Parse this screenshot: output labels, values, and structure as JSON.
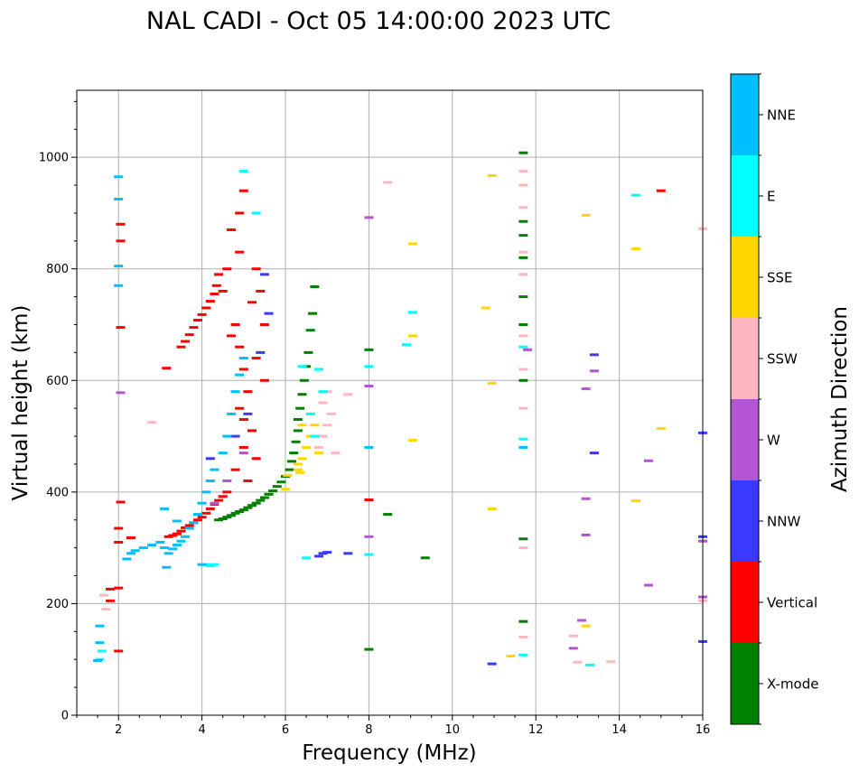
{
  "chart_data": {
    "type": "scatter",
    "title": "NAL CADI - Oct 05 14:00:00 2023 UTC",
    "xlabel": "Frequency (MHz)",
    "ylabel": "Virtual height (km)",
    "xlim": [
      1,
      16
    ],
    "ylim": [
      0,
      1120
    ],
    "xticks": [
      2,
      4,
      6,
      8,
      10,
      12,
      14,
      16
    ],
    "yticks": [
      0,
      200,
      400,
      600,
      800,
      1000
    ],
    "grid": true,
    "colorbar": {
      "label": "Azimuth Direction",
      "placement": "right",
      "categories": [
        {
          "name": "X-mode",
          "color": "#008000"
        },
        {
          "name": "Vertical",
          "color": "#ff0000"
        },
        {
          "name": "NNW",
          "color": "#3a3aff"
        },
        {
          "name": "W",
          "color": "#b455d4"
        },
        {
          "name": "SSW",
          "color": "#ffb6c1"
        },
        {
          "name": "SSE",
          "color": "#ffd700"
        },
        {
          "name": "E",
          "color": "#00ffff"
        },
        {
          "name": "NNE",
          "color": "#00bfff"
        }
      ]
    },
    "series": [
      {
        "name": "X-mode",
        "color": "#008000",
        "points": [
          [
            4.4,
            350
          ],
          [
            4.5,
            352
          ],
          [
            4.6,
            355
          ],
          [
            4.7,
            358
          ],
          [
            4.8,
            362
          ],
          [
            4.9,
            365
          ],
          [
            5.0,
            368
          ],
          [
            5.1,
            372
          ],
          [
            5.2,
            376
          ],
          [
            5.3,
            380
          ],
          [
            5.4,
            385
          ],
          [
            5.5,
            390
          ],
          [
            5.6,
            396
          ],
          [
            5.7,
            402
          ],
          [
            5.8,
            410
          ],
          [
            5.9,
            418
          ],
          [
            6.0,
            428
          ],
          [
            6.1,
            440
          ],
          [
            6.15,
            455
          ],
          [
            6.2,
            470
          ],
          [
            6.25,
            490
          ],
          [
            6.3,
            510
          ],
          [
            6.3,
            530
          ],
          [
            6.35,
            550
          ],
          [
            6.4,
            575
          ],
          [
            6.45,
            600
          ],
          [
            6.5,
            625
          ],
          [
            6.55,
            650
          ],
          [
            6.6,
            690
          ],
          [
            6.65,
            720
          ],
          [
            6.7,
            768
          ],
          [
            8.0,
            118
          ],
          [
            8.0,
            655
          ],
          [
            8.45,
            360
          ],
          [
            9.35,
            282
          ],
          [
            11.7,
            168
          ],
          [
            11.7,
            316
          ],
          [
            11.7,
            600
          ],
          [
            11.7,
            700
          ],
          [
            11.7,
            750
          ],
          [
            11.7,
            820
          ],
          [
            11.7,
            860
          ],
          [
            11.7,
            885
          ],
          [
            11.7,
            1008
          ]
        ]
      },
      {
        "name": "Vertical",
        "color": "#ff0000",
        "points": [
          [
            1.8,
            205
          ],
          [
            1.8,
            226
          ],
          [
            2.0,
            115
          ],
          [
            2.0,
            228
          ],
          [
            2.0,
            310
          ],
          [
            2.0,
            335
          ],
          [
            2.05,
            382
          ],
          [
            2.05,
            695
          ],
          [
            2.05,
            850
          ],
          [
            2.05,
            880
          ],
          [
            2.3,
            318
          ],
          [
            3.2,
            320
          ],
          [
            3.3,
            322
          ],
          [
            3.4,
            325
          ],
          [
            3.5,
            330
          ],
          [
            3.6,
            336
          ],
          [
            3.7,
            340
          ],
          [
            3.8,
            345
          ],
          [
            3.9,
            350
          ],
          [
            4.0,
            355
          ],
          [
            4.1,
            362
          ],
          [
            4.2,
            370
          ],
          [
            4.3,
            378
          ],
          [
            4.4,
            385
          ],
          [
            4.5,
            392
          ],
          [
            4.6,
            400
          ],
          [
            3.15,
            622
          ],
          [
            3.5,
            660
          ],
          [
            3.6,
            670
          ],
          [
            3.7,
            682
          ],
          [
            3.8,
            695
          ],
          [
            3.9,
            708
          ],
          [
            4.0,
            718
          ],
          [
            4.1,
            730
          ],
          [
            4.2,
            742
          ],
          [
            4.3,
            755
          ],
          [
            4.35,
            770
          ],
          [
            4.4,
            790
          ],
          [
            4.7,
            680
          ],
          [
            4.8,
            700
          ],
          [
            4.9,
            660
          ],
          [
            5.0,
            620
          ],
          [
            5.1,
            580
          ],
          [
            4.9,
            550
          ],
          [
            5.0,
            530
          ],
          [
            5.2,
            510
          ],
          [
            5.0,
            480
          ],
          [
            5.3,
            460
          ],
          [
            4.8,
            440
          ],
          [
            5.1,
            420
          ],
          [
            4.9,
            900
          ],
          [
            5.0,
            940
          ],
          [
            4.7,
            870
          ],
          [
            4.9,
            830
          ],
          [
            5.3,
            800
          ],
          [
            5.4,
            760
          ],
          [
            5.5,
            700
          ],
          [
            5.3,
            640
          ],
          [
            5.5,
            600
          ],
          [
            4.6,
            800
          ],
          [
            4.5,
            760
          ],
          [
            5.2,
            740
          ],
          [
            8.0,
            386
          ],
          [
            15.0,
            940
          ]
        ]
      },
      {
        "name": "NNW",
        "color": "#3a3aff",
        "points": [
          [
            6.8,
            285
          ],
          [
            6.9,
            290
          ],
          [
            7.0,
            292
          ],
          [
            7.5,
            290
          ],
          [
            4.2,
            460
          ],
          [
            4.8,
            500
          ],
          [
            5.1,
            540
          ],
          [
            5.4,
            650
          ],
          [
            5.5,
            790
          ],
          [
            5.6,
            720
          ],
          [
            10.95,
            92
          ],
          [
            13.4,
            470
          ],
          [
            13.4,
            646
          ],
          [
            16.0,
            320
          ],
          [
            16.0,
            506
          ],
          [
            16.0,
            132
          ]
        ]
      },
      {
        "name": "W",
        "color": "#b455d4",
        "points": [
          [
            2.05,
            578
          ],
          [
            8.0,
            320
          ],
          [
            8.0,
            590
          ],
          [
            8.0,
            892
          ],
          [
            11.8,
            655
          ],
          [
            12.9,
            120
          ],
          [
            13.1,
            170
          ],
          [
            13.2,
            323
          ],
          [
            13.2,
            388
          ],
          [
            13.2,
            585
          ],
          [
            13.4,
            617
          ],
          [
            14.7,
            456
          ],
          [
            14.7,
            233
          ],
          [
            16.0,
            212
          ],
          [
            16.0,
            312
          ],
          [
            4.3,
            380
          ],
          [
            4.6,
            420
          ],
          [
            5.0,
            470
          ]
        ]
      },
      {
        "name": "SSW",
        "color": "#ffb6c1",
        "points": [
          [
            6.9,
            500
          ],
          [
            7.0,
            520
          ],
          [
            7.1,
            540
          ],
          [
            6.8,
            480
          ],
          [
            6.9,
            560
          ],
          [
            7.0,
            580
          ],
          [
            7.5,
            575
          ],
          [
            7.2,
            470
          ],
          [
            2.8,
            525
          ],
          [
            1.65,
            215
          ],
          [
            1.7,
            190
          ],
          [
            8.45,
            955
          ],
          [
            11.7,
            140
          ],
          [
            11.7,
            300
          ],
          [
            11.7,
            550
          ],
          [
            11.7,
            620
          ],
          [
            11.7,
            680
          ],
          [
            11.7,
            790
          ],
          [
            11.7,
            830
          ],
          [
            11.7,
            910
          ],
          [
            11.7,
            950
          ],
          [
            11.7,
            975
          ],
          [
            12.9,
            142
          ],
          [
            13.0,
            95
          ],
          [
            13.8,
            96
          ],
          [
            16.0,
            205
          ],
          [
            16.0,
            872
          ]
        ]
      },
      {
        "name": "SSE",
        "color": "#ffd700",
        "points": [
          [
            6.0,
            405
          ],
          [
            6.05,
            430
          ],
          [
            6.3,
            450
          ],
          [
            6.3,
            440
          ],
          [
            6.35,
            435
          ],
          [
            6.4,
            460
          ],
          [
            6.5,
            480
          ],
          [
            6.6,
            500
          ],
          [
            6.7,
            520
          ],
          [
            6.8,
            470
          ],
          [
            6.6,
            540
          ],
          [
            6.4,
            520
          ],
          [
            9.05,
            845
          ],
          [
            9.05,
            680
          ],
          [
            9.05,
            493
          ],
          [
            10.8,
            730
          ],
          [
            10.95,
            370
          ],
          [
            10.95,
            595
          ],
          [
            10.95,
            967
          ],
          [
            11.4,
            106
          ],
          [
            13.2,
            160
          ],
          [
            13.2,
            896
          ],
          [
            14.4,
            384
          ],
          [
            14.4,
            836
          ],
          [
            15.0,
            514
          ]
        ]
      },
      {
        "name": "E",
        "color": "#00ffff",
        "points": [
          [
            1.55,
            100
          ],
          [
            1.6,
            115
          ],
          [
            4.1,
            270
          ],
          [
            4.2,
            268
          ],
          [
            4.3,
            270
          ],
          [
            5.3,
            900
          ],
          [
            6.4,
            625
          ],
          [
            6.6,
            540
          ],
          [
            6.8,
            620
          ],
          [
            6.7,
            500
          ],
          [
            6.9,
            580
          ],
          [
            6.5,
            282
          ],
          [
            5.0,
            975
          ],
          [
            8.0,
            288
          ],
          [
            8.0,
            625
          ],
          [
            8.9,
            664
          ],
          [
            9.05,
            722
          ],
          [
            11.7,
            108
          ],
          [
            11.7,
            495
          ],
          [
            11.7,
            660
          ],
          [
            13.3,
            90
          ],
          [
            14.4,
            932
          ]
        ]
      },
      {
        "name": "NNE",
        "color": "#00bfff",
        "points": [
          [
            1.5,
            98
          ],
          [
            1.55,
            130
          ],
          [
            1.55,
            160
          ],
          [
            2.0,
            770
          ],
          [
            2.0,
            805
          ],
          [
            2.0,
            925
          ],
          [
            2.0,
            965
          ],
          [
            2.2,
            280
          ],
          [
            2.3,
            290
          ],
          [
            2.4,
            295
          ],
          [
            2.6,
            300
          ],
          [
            2.8,
            305
          ],
          [
            3.0,
            310
          ],
          [
            3.1,
            300
          ],
          [
            3.2,
            290
          ],
          [
            3.3,
            298
          ],
          [
            3.4,
            305
          ],
          [
            3.5,
            312
          ],
          [
            3.6,
            320
          ],
          [
            3.7,
            335
          ],
          [
            3.8,
            345
          ],
          [
            3.9,
            360
          ],
          [
            4.0,
            380
          ],
          [
            4.1,
            400
          ],
          [
            4.2,
            420
          ],
          [
            4.3,
            440
          ],
          [
            4.5,
            470
          ],
          [
            4.6,
            500
          ],
          [
            4.7,
            540
          ],
          [
            4.8,
            580
          ],
          [
            4.9,
            610
          ],
          [
            5.0,
            640
          ],
          [
            3.1,
            370
          ],
          [
            3.15,
            265
          ],
          [
            3.4,
            348
          ],
          [
            4.0,
            270
          ],
          [
            8.0,
            480
          ],
          [
            11.7,
            480
          ]
        ]
      }
    ]
  }
}
